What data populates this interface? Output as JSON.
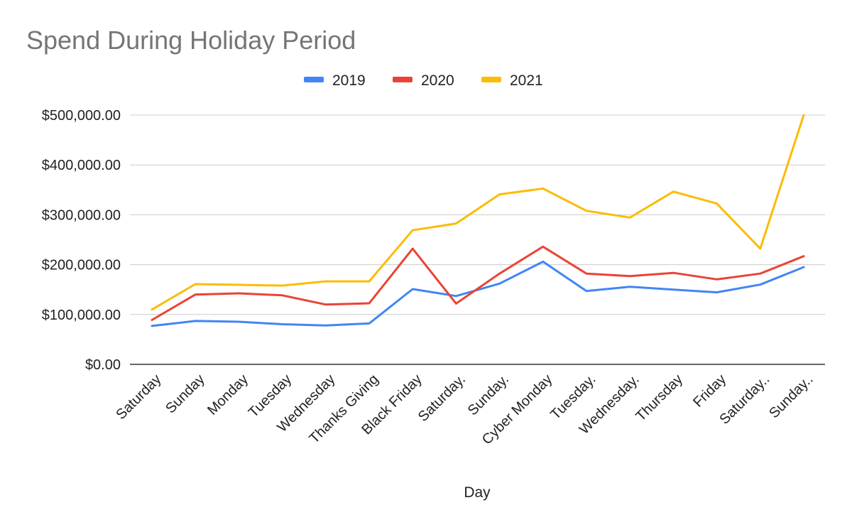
{
  "chart_data": {
    "type": "line",
    "title": "Spend During Holiday Period",
    "xlabel": "Day",
    "ylabel": "",
    "ylim": [
      0,
      500000
    ],
    "yticks": [
      0,
      100000,
      200000,
      300000,
      400000,
      500000
    ],
    "ytick_labels": [
      "$0.00",
      "$100,000.00",
      "$200,000.00",
      "$300,000.00",
      "$400,000.00",
      "$500,000.00"
    ],
    "grid": true,
    "legend_position": "top-center",
    "categories": [
      "Saturday",
      "Sunday",
      "Monday",
      "Tuesday",
      "Wednesday",
      "Thanks Giving",
      "Black Friday",
      "Saturday.",
      "Sunday.",
      "Cyber Monday",
      "Tuesday.",
      "Wednesday.",
      "Thursday",
      "Friday",
      "Saturday..",
      "Sunday.."
    ],
    "series": [
      {
        "name": "2019",
        "color": "#4285f4",
        "values": [
          77000,
          87000,
          85500,
          80500,
          78000,
          82000,
          151000,
          137000,
          162000,
          206000,
          147000,
          155500,
          150000,
          144500,
          160000,
          195000
        ]
      },
      {
        "name": "2020",
        "color": "#ea4335",
        "values": [
          89000,
          140000,
          142500,
          138500,
          120000,
          122500,
          232000,
          122000,
          182000,
          236000,
          182000,
          177000,
          183500,
          170500,
          182000,
          217000
        ]
      },
      {
        "name": "2021",
        "color": "#fbbc04",
        "values": [
          110000,
          161000,
          159500,
          158000,
          166500,
          166500,
          269000,
          282500,
          341000,
          352500,
          308000,
          294500,
          346500,
          322500,
          232000,
          500000
        ]
      }
    ]
  }
}
